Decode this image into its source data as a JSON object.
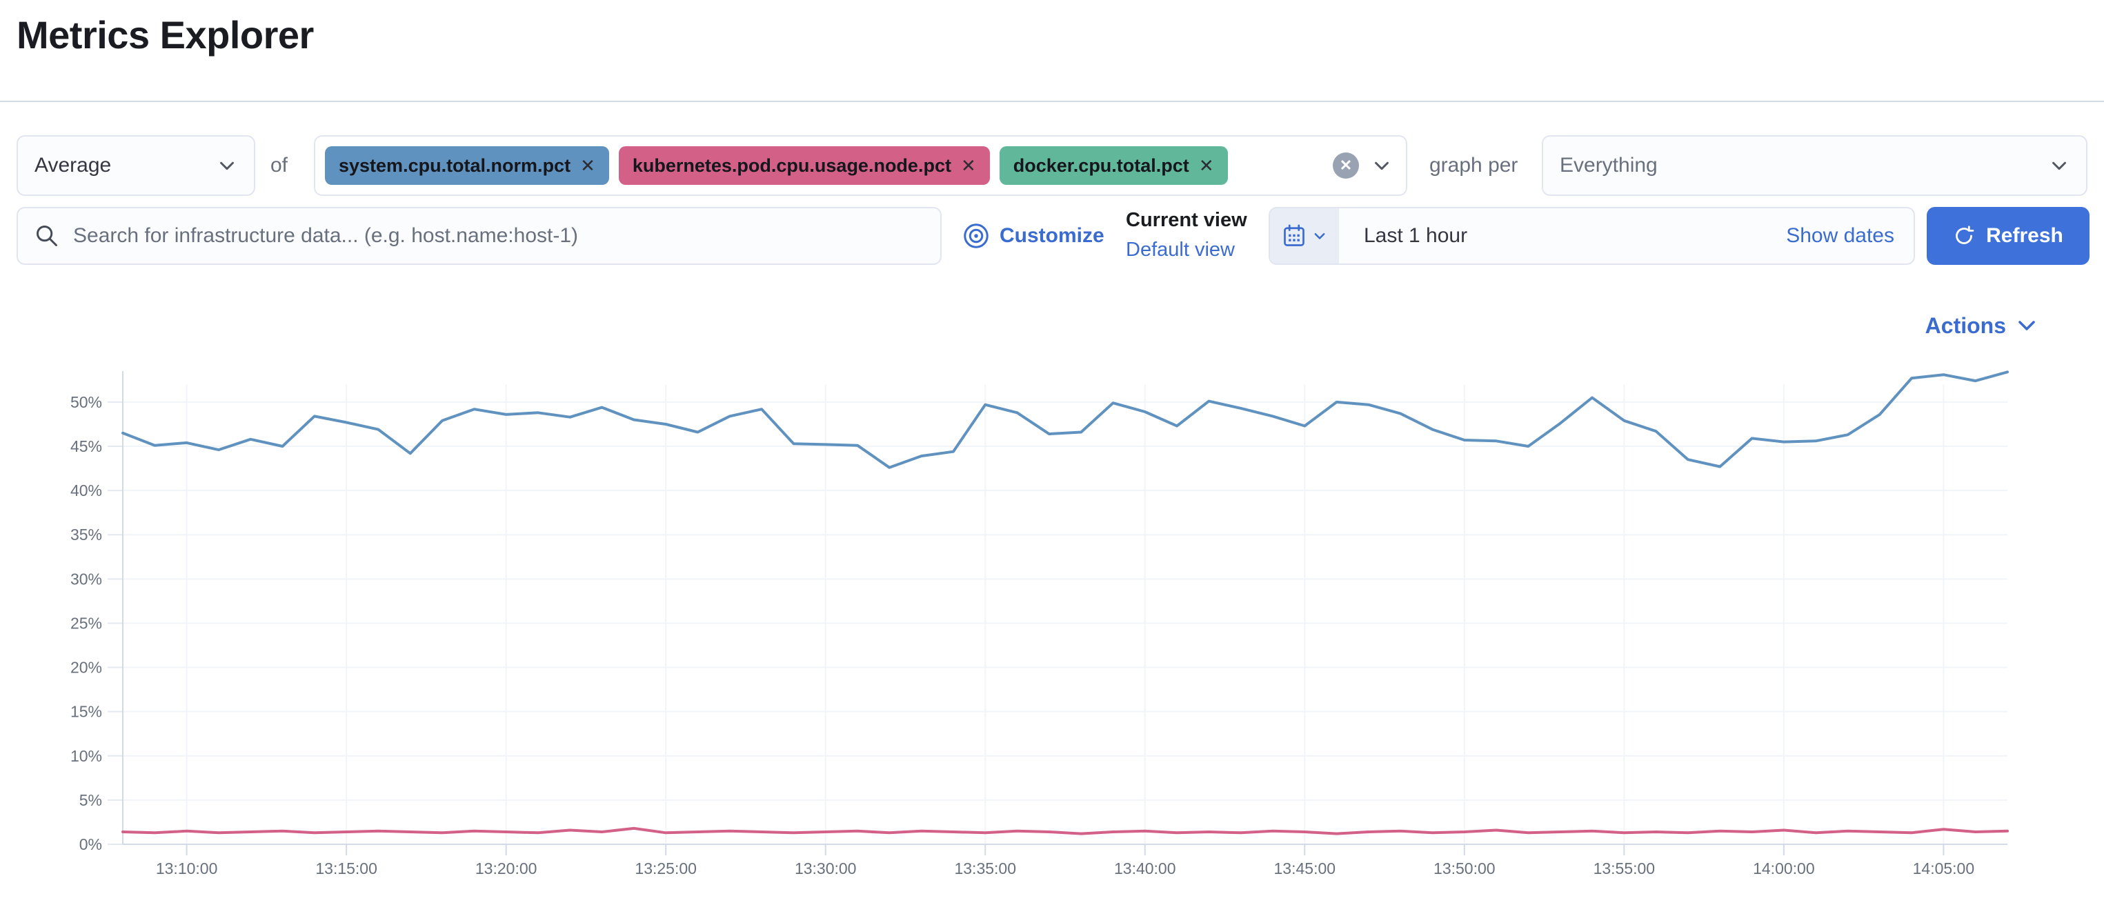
{
  "page": {
    "title": "Metrics Explorer"
  },
  "toolbar": {
    "aggregation": {
      "value": "Average"
    },
    "of_label": "of",
    "metrics": [
      {
        "label": "system.cpu.total.norm.pct",
        "color": "#6092C0",
        "remove_glyph": "✕"
      },
      {
        "label": "kubernetes.pod.cpu.usage.node.pct",
        "color": "#D36086",
        "remove_glyph": "✕"
      },
      {
        "label": "docker.cpu.total.pct",
        "color": "#61B79A",
        "remove_glyph": "✕"
      }
    ],
    "clear_all_glyph": "✕",
    "graph_per_label": "graph per",
    "group_by": {
      "value": "Everything"
    }
  },
  "search": {
    "placeholder": "Search for infrastructure data... (e.g. host.name:host-1)"
  },
  "view_controls": {
    "customize_label": "Customize",
    "current_view_label": "Current view",
    "view_name": "Default view"
  },
  "time_picker": {
    "value": "Last 1 hour",
    "show_dates_label": "Show dates",
    "refresh_label": "Refresh"
  },
  "actions": {
    "label": "Actions"
  },
  "accent_color": "#3A6CD0",
  "chart_data": {
    "type": "line",
    "title": "",
    "xlabel": "",
    "ylabel": "",
    "x_unit": "time",
    "x_start": "13:08:00",
    "x_interval_minutes": 1,
    "x_tick_labels": [
      "13:10:00",
      "13:15:00",
      "13:20:00",
      "13:25:00",
      "13:30:00",
      "13:35:00",
      "13:40:00",
      "13:45:00",
      "13:50:00",
      "13:55:00",
      "14:00:00",
      "14:05:00"
    ],
    "x_tick_indices": [
      2,
      7,
      12,
      17,
      22,
      27,
      32,
      37,
      42,
      47,
      52,
      57
    ],
    "y_tick_labels": [
      "0%",
      "5%",
      "10%",
      "15%",
      "20%",
      "25%",
      "30%",
      "35%",
      "40%",
      "45%",
      "50%"
    ],
    "ylim": [
      0,
      55
    ],
    "grid": true,
    "legend_position": "none",
    "series": [
      {
        "name": "kubernetes.pod.cpu.usage.node.pct",
        "color": "#D36086",
        "values": [
          1.4,
          1.3,
          1.5,
          1.3,
          1.4,
          1.5,
          1.3,
          1.4,
          1.5,
          1.4,
          1.3,
          1.5,
          1.4,
          1.3,
          1.6,
          1.4,
          1.8,
          1.3,
          1.4,
          1.5,
          1.4,
          1.3,
          1.4,
          1.5,
          1.3,
          1.5,
          1.4,
          1.3,
          1.5,
          1.4,
          1.2,
          1.4,
          1.5,
          1.3,
          1.4,
          1.3,
          1.5,
          1.4,
          1.2,
          1.4,
          1.5,
          1.3,
          1.4,
          1.6,
          1.3,
          1.4,
          1.5,
          1.3,
          1.4,
          1.3,
          1.5,
          1.4,
          1.6,
          1.3,
          1.5,
          1.4,
          1.3,
          1.7,
          1.4,
          1.5
        ]
      },
      {
        "name": "system.cpu.total.norm.pct",
        "color": "#6092C0",
        "values": [
          46.5,
          45.1,
          45.4,
          44.6,
          45.8,
          45.0,
          48.4,
          47.7,
          46.9,
          44.2,
          47.9,
          49.2,
          48.6,
          48.8,
          48.3,
          49.4,
          48.0,
          47.5,
          46.6,
          48.4,
          49.2,
          45.3,
          45.2,
          45.1,
          42.6,
          43.9,
          44.4,
          49.7,
          48.8,
          46.4,
          46.6,
          49.9,
          48.9,
          47.3,
          50.1,
          49.3,
          48.4,
          47.3,
          50.0,
          49.7,
          48.7,
          46.9,
          45.7,
          45.6,
          45.0,
          47.6,
          50.5,
          47.9,
          46.7,
          43.5,
          42.7,
          45.9,
          45.5,
          45.6,
          46.3,
          48.6,
          52.7,
          53.1,
          52.4,
          53.4
        ]
      }
    ],
    "note": "docker.cpu.total.pct is selected but its line is not separately visible (overlaps the ~1.5% line)"
  }
}
